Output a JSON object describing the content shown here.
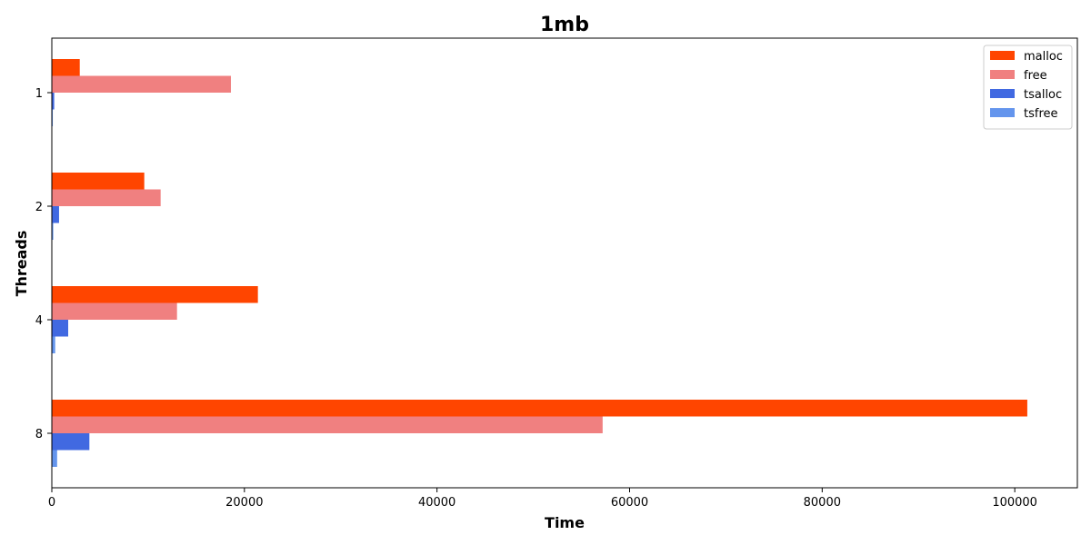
{
  "chart_data": {
    "type": "bar",
    "orientation": "horizontal",
    "title": "1mb",
    "xlabel": "Time",
    "ylabel": "Threads",
    "categories": [
      "1",
      "2",
      "4",
      "8"
    ],
    "xlim": [
      0,
      106500
    ],
    "xticks": [
      0,
      20000,
      40000,
      60000,
      80000,
      100000
    ],
    "xtick_labels": [
      "0",
      "20000",
      "40000",
      "60000",
      "80000",
      "100000"
    ],
    "legend_position": "top-right",
    "grid": false,
    "series": [
      {
        "name": "malloc",
        "color": "#ff4500",
        "values": [
          2900,
          9600,
          21400,
          101300
        ]
      },
      {
        "name": "free",
        "color": "#f08080",
        "values": [
          18600,
          11300,
          13000,
          57200
        ]
      },
      {
        "name": "tsalloc",
        "color": "#4169e1",
        "values": [
          250,
          750,
          1700,
          3900
        ]
      },
      {
        "name": "tsfree",
        "color": "#6495ed",
        "values": [
          100,
          150,
          350,
          550
        ]
      }
    ]
  }
}
